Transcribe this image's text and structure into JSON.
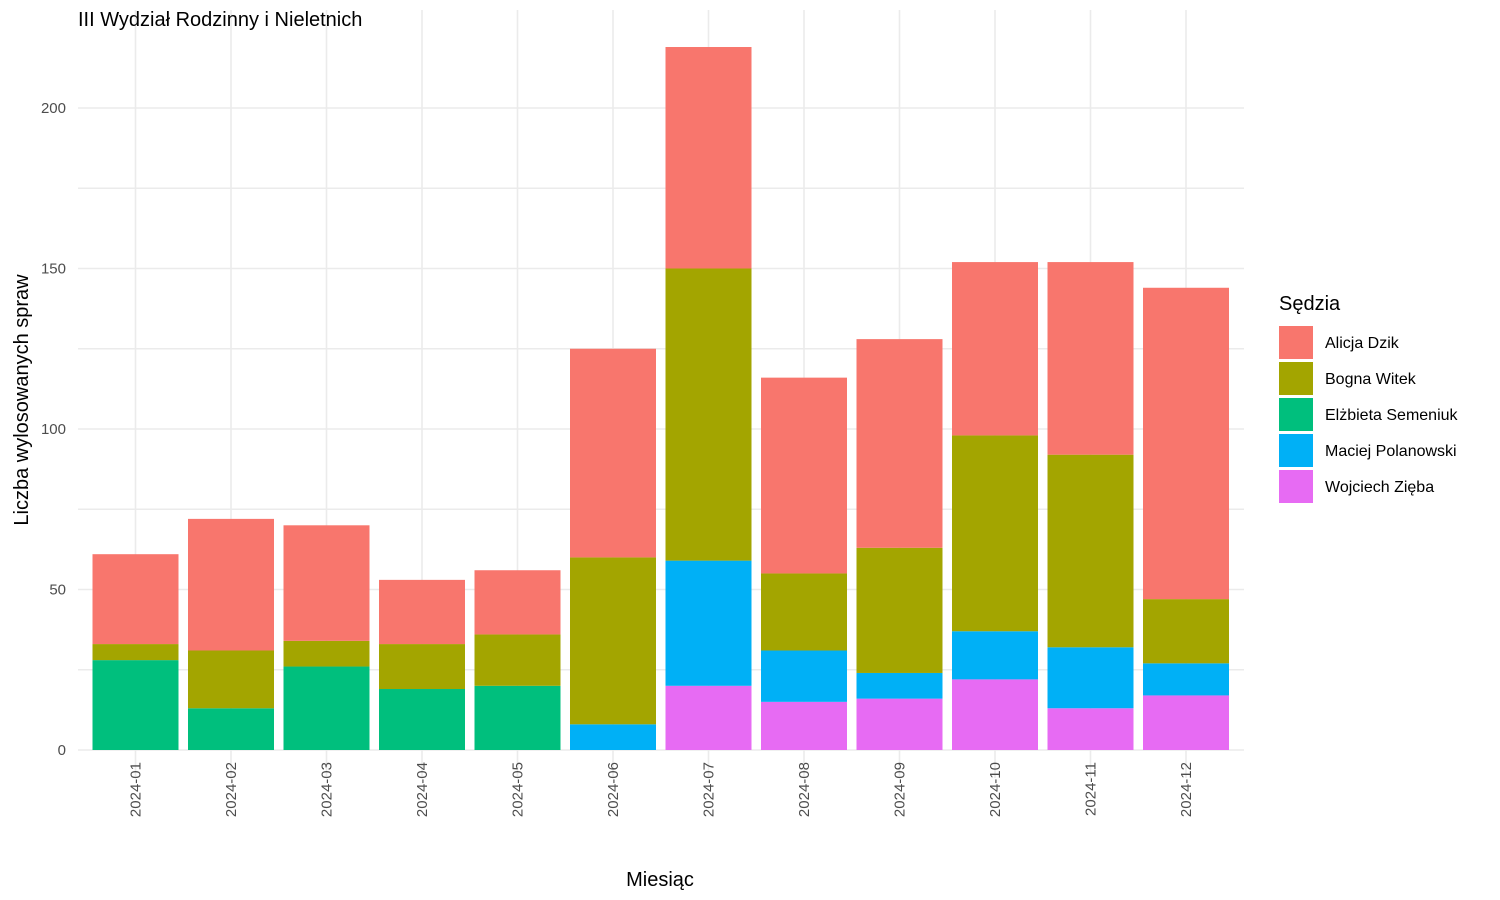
{
  "chart_data": {
    "type": "bar",
    "stacked": true,
    "title": "III Wydział Rodzinny i Nieletnich",
    "xlabel": "Miesiąc",
    "ylabel": "Liczba wylosowanych spraw",
    "ylim": [
      0,
      220
    ],
    "yticks": [
      0,
      50,
      100,
      150,
      200
    ],
    "grid": true,
    "legend_title": "Sędzia",
    "legend_position": "right",
    "categories": [
      "2024-01",
      "2024-02",
      "2024-03",
      "2024-04",
      "2024-05",
      "2024-06",
      "2024-07",
      "2024-08",
      "2024-09",
      "2024-10",
      "2024-11",
      "2024-12"
    ],
    "series": [
      {
        "name": "Wojciech Zięba",
        "color": "#E76BF3",
        "values": [
          0,
          0,
          0,
          0,
          0,
          0,
          20,
          15,
          16,
          22,
          13,
          17
        ]
      },
      {
        "name": "Maciej Polanowski",
        "color": "#00B0F6",
        "values": [
          0,
          0,
          0,
          0,
          0,
          8,
          39,
          16,
          8,
          15,
          19,
          10
        ]
      },
      {
        "name": "Elżbieta Semeniuk",
        "color": "#00BF7D",
        "values": [
          28,
          13,
          26,
          19,
          20,
          0,
          0,
          0,
          0,
          0,
          0,
          0
        ]
      },
      {
        "name": "Bogna Witek",
        "color": "#A3A500",
        "values": [
          5,
          18,
          8,
          14,
          16,
          52,
          91,
          24,
          39,
          61,
          60,
          20
        ]
      },
      {
        "name": "Alicja Dzik",
        "color": "#F8766D",
        "values": [
          28,
          41,
          36,
          20,
          20,
          65,
          69,
          61,
          65,
          54,
          60,
          97
        ]
      }
    ],
    "legend_order": [
      "Alicja Dzik",
      "Bogna Witek",
      "Elżbieta Semeniuk",
      "Maciej Polanowski",
      "Wojciech Zięba"
    ]
  }
}
